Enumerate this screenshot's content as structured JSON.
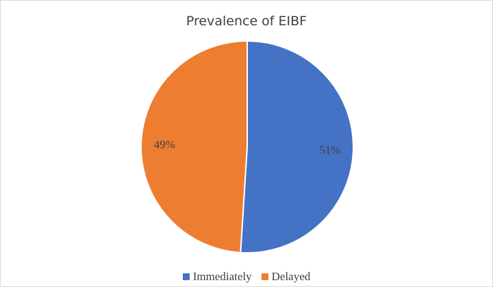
{
  "chart_data": {
    "type": "pie",
    "title": "Prevalence of EIBF",
    "categories": [
      "Immediately",
      "Delayed"
    ],
    "values": [
      51,
      49
    ],
    "value_labels": [
      "51%",
      "49%"
    ],
    "colors": [
      "#4472c4",
      "#ed7d31"
    ],
    "legend": "bottom"
  }
}
